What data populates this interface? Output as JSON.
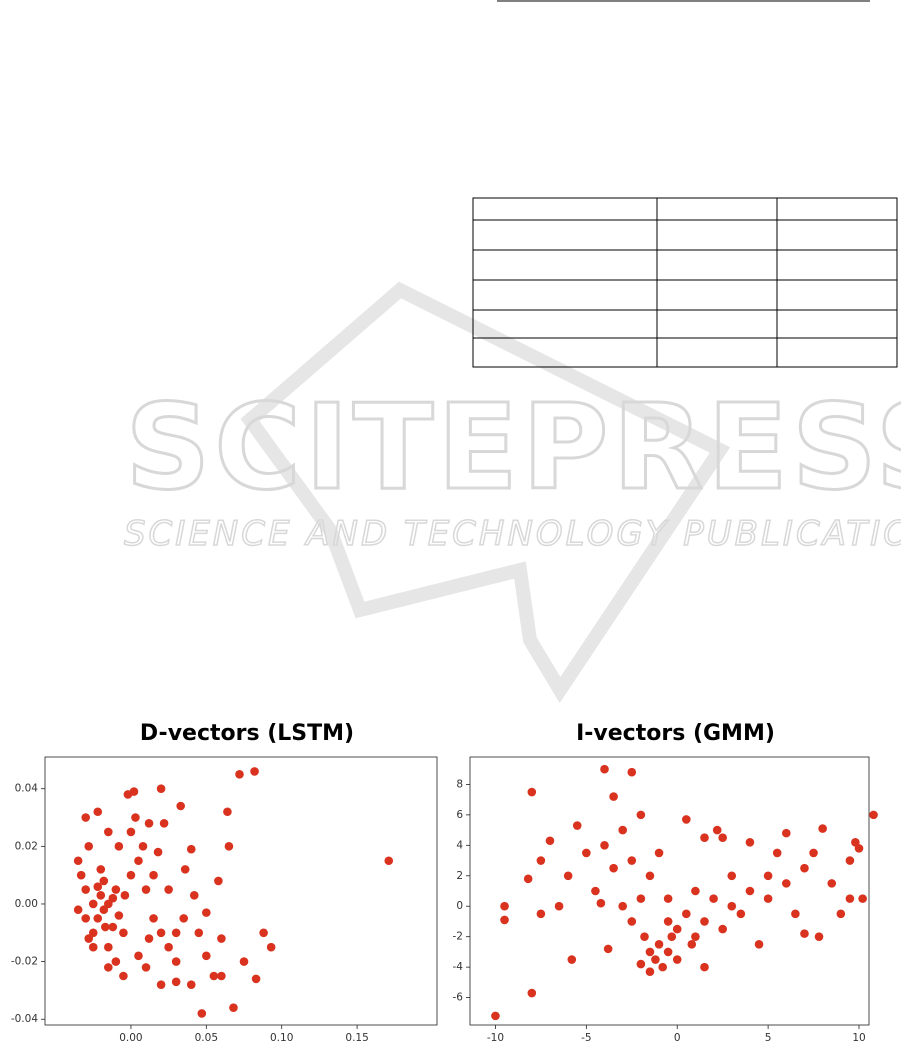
{
  "watermark": {
    "title": "SCITEPRESS",
    "subtitle": "SCIENCE AND TECHNOLOGY PUBLICATIONS"
  },
  "chart_data": [
    {
      "type": "scatter",
      "title": "D-vectors (LSTM)",
      "color": "#d9321f",
      "x": [
        -0.035,
        -0.033,
        -0.03,
        -0.028,
        -0.025,
        -0.022,
        -0.02,
        -0.018,
        -0.015,
        -0.012,
        -0.01,
        -0.02,
        -0.025,
        -0.03,
        -0.015,
        -0.01,
        -0.005,
        0.0,
        0.005,
        0.0,
        0.003,
        -0.002,
        0.002,
        0.012,
        0.02,
        0.022,
        0.033,
        0.01,
        0.015,
        0.02,
        0.025,
        0.03,
        0.035,
        0.04,
        0.042,
        0.045,
        0.05,
        0.055,
        0.06,
        0.065,
        0.064,
        0.072,
        0.082,
        0.088,
        0.093,
        0.083,
        0.075,
        0.068,
        0.047,
        0.04,
        0.03,
        0.02,
        0.01,
        0.005,
        -0.005,
        -0.015,
        -0.025,
        -0.03,
        -0.022,
        -0.015,
        -0.008,
        0.008,
        0.015,
        0.025,
        0.03,
        -0.035,
        -0.028,
        -0.018,
        -0.012,
        -0.008,
        -0.022,
        -0.017,
        0.171,
        0.058,
        0.05,
        0.036,
        0.012,
        -0.004,
        0.018,
        0.06
      ],
      "y": [
        0.015,
        0.01,
        0.005,
        0.02,
        0.0,
        -0.005,
        0.003,
        -0.002,
        0.0,
        -0.008,
        0.005,
        0.012,
        -0.01,
        -0.005,
        -0.015,
        -0.02,
        -0.01,
        0.01,
        0.015,
        0.025,
        0.03,
        0.038,
        0.039,
        0.028,
        0.04,
        0.028,
        0.034,
        0.005,
        -0.005,
        -0.01,
        -0.015,
        -0.02,
        -0.005,
        0.019,
        0.003,
        -0.01,
        -0.018,
        -0.025,
        -0.012,
        0.02,
        0.032,
        0.045,
        0.046,
        -0.01,
        -0.015,
        -0.026,
        -0.02,
        -0.036,
        -0.038,
        -0.028,
        -0.027,
        -0.028,
        -0.022,
        -0.018,
        -0.025,
        -0.022,
        -0.015,
        0.03,
        0.032,
        0.025,
        0.02,
        0.02,
        0.01,
        0.005,
        -0.01,
        -0.002,
        -0.012,
        0.008,
        0.002,
        -0.004,
        0.006,
        -0.008,
        0.015,
        0.008,
        -0.003,
        0.012,
        -0.012,
        0.003,
        0.018,
        -0.025
      ],
      "xlim": [
        -0.057,
        0.203
      ],
      "xticks": [
        {
          "value": 0,
          "label": "0.00"
        },
        {
          "value": 0.05,
          "label": "0.05"
        },
        {
          "value": 0.1,
          "label": "0.10"
        },
        {
          "value": 0.15,
          "label": "0.15"
        }
      ],
      "ylim": [
        -0.042,
        0.051
      ],
      "yticks": [
        {
          "value": -0.04,
          "label": "-0.04"
        },
        {
          "value": -0.02,
          "label": "-0.02"
        },
        {
          "value": 0,
          "label": "0.00"
        },
        {
          "value": 0.02,
          "label": "0.02"
        },
        {
          "value": 0.04,
          "label": "0.04"
        }
      ],
      "grid": false
    },
    {
      "type": "scatter",
      "title": "I-vectors (GMM)",
      "color": "#d9321f",
      "x": [
        -10,
        -8,
        -9.5,
        -9.5,
        -8,
        -4,
        -2.5,
        -3.5,
        -8.2,
        -7.5,
        -7,
        -6,
        -5.5,
        -5,
        -4.5,
        -4,
        -3.5,
        -3,
        -2.5,
        -2,
        -2,
        -1.5,
        -1,
        -6.5,
        -5.8,
        -7.5,
        -3.8,
        -4.2,
        -3,
        -2.5,
        -1.8,
        -1.5,
        -1.2,
        -1,
        -0.8,
        -0.5,
        -0.3,
        0,
        -1.5,
        -2,
        -0.5,
        0,
        0.5,
        0.8,
        1,
        1.5,
        1.5,
        2,
        2.5,
        2.5,
        3,
        3,
        3.5,
        4,
        4,
        4.5,
        5,
        5,
        5.5,
        6,
        6,
        6.5,
        7,
        7,
        7.5,
        7.8,
        8,
        8.5,
        9,
        9.5,
        9.5,
        9.8,
        10,
        10.2,
        10.8,
        0.5,
        1.5,
        2.2,
        -0.5,
        1
      ],
      "y": [
        -7.2,
        -5.7,
        0,
        -0.9,
        7.5,
        9,
        8.8,
        7.2,
        1.8,
        3,
        4.3,
        2,
        5.3,
        3.5,
        1,
        4,
        2.5,
        5,
        3,
        6,
        0.5,
        2,
        3.5,
        0,
        -3.5,
        -0.5,
        -2.8,
        0.2,
        0,
        -1,
        -2,
        -3,
        -3.5,
        -2.5,
        -4,
        -3,
        -2,
        -3.5,
        -4.3,
        -3.8,
        -1,
        -1.5,
        -0.5,
        -2.5,
        1,
        -1,
        -4,
        0.5,
        -1.5,
        4.5,
        2,
        0,
        -0.5,
        1,
        4.2,
        -2.5,
        2,
        0.5,
        3.5,
        1.5,
        4.8,
        -0.5,
        2.5,
        -1.8,
        3.5,
        -2,
        5.1,
        1.5,
        -0.5,
        0.5,
        3,
        4.2,
        3.8,
        0.5,
        6,
        5.7,
        4.5,
        5,
        0.5,
        -2
      ],
      "xlim": [
        -11.4,
        10.55
      ],
      "xticks": [
        -10,
        -5,
        0,
        5,
        10
      ],
      "ylim": [
        -7.8,
        9.8
      ],
      "yticks": [
        -6,
        -4,
        -2,
        0,
        2,
        4,
        6,
        8
      ],
      "grid": false
    }
  ]
}
